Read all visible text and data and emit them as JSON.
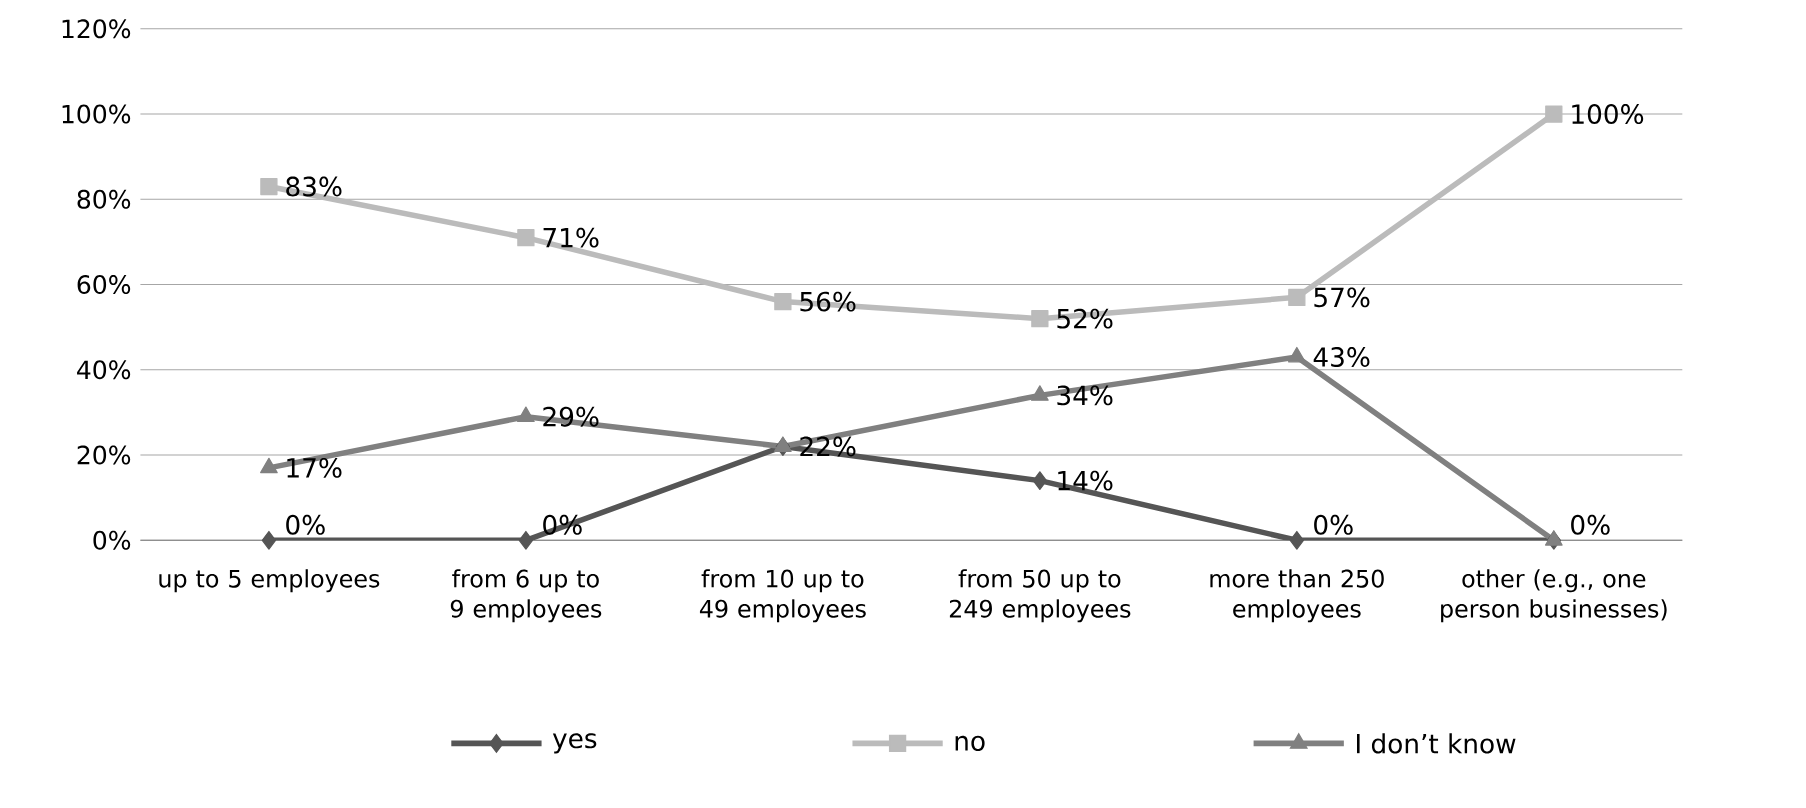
{
  "chart_data": {
    "type": "line",
    "categories": [
      "up to 5 employees",
      "from 6 up to 9 employees",
      "from 10 up to 49 employees",
      "from 50 up to 249 employees",
      "more than 250 employees",
      "other (e.g., one person businesses)"
    ],
    "series": [
      {
        "name": "yes",
        "color": "#555555",
        "marker": "diamond",
        "values": [
          0,
          0,
          22,
          14,
          0,
          0
        ],
        "value_labels": [
          "0%",
          "0%",
          null,
          "14%",
          "0%",
          null
        ]
      },
      {
        "name": "no",
        "color": "#bbbbbb",
        "marker": "square",
        "values": [
          83,
          71,
          56,
          52,
          57,
          100
        ],
        "value_labels": [
          "83%",
          "71%",
          "56%",
          "52%",
          "57%",
          "100%"
        ]
      },
      {
        "name": "I don’t know",
        "color": "#808080",
        "marker": "triangle",
        "values": [
          17,
          29,
          22,
          34,
          43,
          0
        ],
        "value_labels": [
          "17%",
          "29%",
          "22%",
          "34%",
          "43%",
          "0%"
        ]
      }
    ],
    "ylim": [
      0,
      120
    ],
    "yticks": [
      {
        "value": 0,
        "label": "0%"
      },
      {
        "value": 20,
        "label": "20%"
      },
      {
        "value": 40,
        "label": "40%"
      },
      {
        "value": 60,
        "label": "60%"
      },
      {
        "value": 80,
        "label": "80%"
      },
      {
        "value": 100,
        "label": "100%"
      },
      {
        "value": 120,
        "label": "120%"
      }
    ],
    "grid": "y",
    "legend": "bottom"
  }
}
